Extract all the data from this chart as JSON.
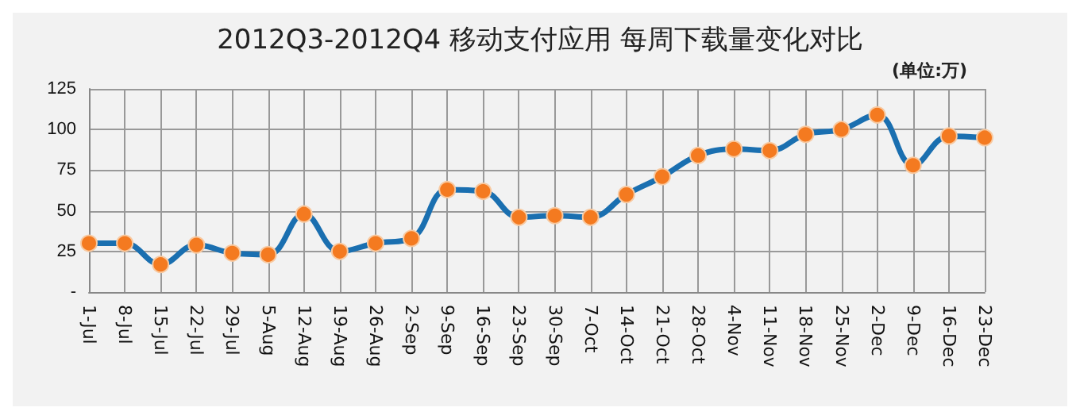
{
  "chart_data": {
    "type": "line",
    "title": "2012Q3-2012Q4 移动支付应用 每周下载量变化对比",
    "subtitle": "(单位:万)",
    "categories": [
      "1-Jul",
      "8-Jul",
      "15-Jul",
      "22-Jul",
      "29-Jul",
      "5-Aug",
      "12-Aug",
      "19-Aug",
      "26-Aug",
      "2-Sep",
      "9-Sep",
      "16-Sep",
      "23-Sep",
      "30-Sep",
      "7-Oct",
      "14-Oct",
      "21-Oct",
      "28-Oct",
      "4-Nov",
      "11-Nov",
      "18-Nov",
      "25-Nov",
      "2-Dec",
      "9-Dec",
      "16-Dec",
      "23-Dec"
    ],
    "series": [
      {
        "color": "#1a6fb0",
        "values": [
          30,
          30,
          17,
          29,
          24,
          23,
          48,
          25,
          30,
          33,
          63,
          62,
          46,
          47,
          46,
          60,
          71,
          84,
          88,
          87,
          97,
          100,
          109,
          78,
          96,
          95
        ]
      }
    ],
    "ylim": [
      0,
      125
    ],
    "yticks": [
      {
        "value": 0,
        "label": "-"
      },
      25,
      50,
      75,
      100,
      125
    ],
    "grid": true,
    "marker": "circle",
    "line_style": "solid"
  }
}
